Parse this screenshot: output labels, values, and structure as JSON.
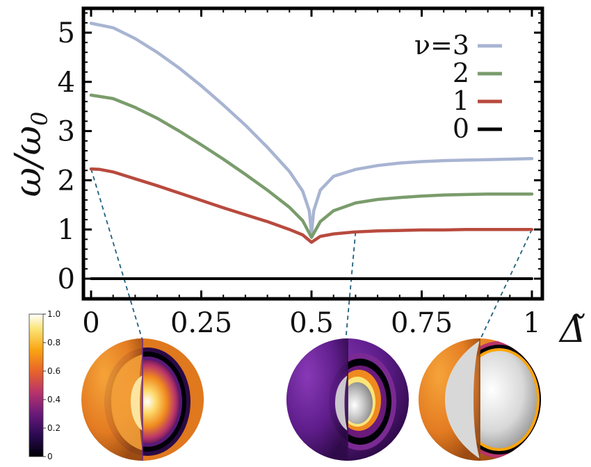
{
  "chart_data": {
    "type": "line",
    "title": "",
    "ylabel": "ω/ω0",
    "ylabel_main": "ω/ω",
    "ylabel_sub": "0",
    "xlabel": "Δ̃",
    "xlim": [
      0,
      1
    ],
    "ylim": [
      -0.2,
      5.75
    ],
    "x_ticks": [
      0,
      0.25,
      0.5,
      0.75,
      1
    ],
    "x_tick_labels": [
      "0",
      "0.25",
      "0.5",
      "0.75",
      "1"
    ],
    "y_ticks": [
      0,
      1,
      2,
      3,
      4,
      5
    ],
    "y_tick_labels": [
      "0",
      "1",
      "2",
      "3",
      "4",
      "5"
    ],
    "legend_position": "top-right",
    "series": [
      {
        "name": "ν=3",
        "legend_label": "ν=3",
        "color": "#a8b4d2",
        "x": [
          0,
          0.05,
          0.1,
          0.15,
          0.2,
          0.25,
          0.3,
          0.35,
          0.4,
          0.45,
          0.48,
          0.495,
          0.5,
          0.505,
          0.52,
          0.55,
          0.6,
          0.65,
          0.7,
          0.75,
          0.8,
          0.85,
          0.9,
          0.95,
          1.0
        ],
        "values": [
          5.19,
          5.1,
          4.88,
          4.6,
          4.28,
          3.92,
          3.53,
          3.12,
          2.67,
          2.18,
          1.78,
          1.38,
          0.92,
          1.38,
          1.8,
          2.08,
          2.22,
          2.3,
          2.35,
          2.38,
          2.4,
          2.41,
          2.42,
          2.43,
          2.44
        ]
      },
      {
        "name": "2",
        "legend_label": "2",
        "color": "#7a9c6c",
        "x": [
          0,
          0.05,
          0.1,
          0.15,
          0.2,
          0.25,
          0.3,
          0.35,
          0.4,
          0.45,
          0.48,
          0.5,
          0.52,
          0.55,
          0.6,
          0.65,
          0.7,
          0.75,
          0.8,
          0.85,
          0.9,
          0.95,
          1.0
        ],
        "values": [
          3.73,
          3.66,
          3.48,
          3.26,
          3.0,
          2.72,
          2.43,
          2.12,
          1.8,
          1.45,
          1.18,
          0.84,
          1.16,
          1.38,
          1.54,
          1.61,
          1.65,
          1.68,
          1.7,
          1.71,
          1.72,
          1.72,
          1.72
        ]
      },
      {
        "name": "1",
        "legend_label": "1",
        "color": "#b84a3e",
        "x": [
          0,
          0.02,
          0.05,
          0.1,
          0.15,
          0.2,
          0.25,
          0.3,
          0.35,
          0.4,
          0.45,
          0.48,
          0.5,
          0.52,
          0.55,
          0.6,
          0.65,
          0.7,
          0.75,
          0.8,
          0.85,
          0.9,
          0.95,
          1.0
        ],
        "values": [
          2.23,
          2.22,
          2.17,
          2.03,
          1.89,
          1.74,
          1.59,
          1.44,
          1.3,
          1.16,
          1.0,
          0.89,
          0.74,
          0.86,
          0.91,
          0.95,
          0.97,
          0.98,
          0.99,
          0.99,
          1.0,
          1.0,
          1.0,
          1.0
        ]
      },
      {
        "name": "0",
        "legend_label": "0",
        "color": "#000000",
        "x": [
          0,
          1
        ],
        "values": [
          0,
          0
        ]
      }
    ],
    "annotations": [
      {
        "type": "dashed-connector",
        "from_x": 0,
        "from_y": 2.23,
        "label": "sphere-left"
      },
      {
        "type": "dashed-connector",
        "from_x": 0.6,
        "from_y": 0.95,
        "label": "sphere-middle"
      },
      {
        "type": "dashed-connector",
        "from_x": 1.0,
        "from_y": 1.0,
        "label": "sphere-right"
      }
    ],
    "colorbar": {
      "min": 0,
      "max": 1.0,
      "tick_values": [
        0,
        0.2,
        0.4,
        0.6,
        0.8,
        1.0
      ],
      "tick_labels": [
        "0",
        "0.2",
        "0.4",
        "0.6",
        "0.8",
        "1.0"
      ]
    },
    "insets": [
      "sphere-left",
      "sphere-middle",
      "sphere-right"
    ]
  },
  "colors": {
    "axis": "#000000",
    "connector": "#1f5f7a",
    "inferno_stops": [
      "#000004",
      "#420a68",
      "#932667",
      "#dd513a",
      "#fca50a",
      "#fcffa4",
      "#ffffff"
    ]
  }
}
